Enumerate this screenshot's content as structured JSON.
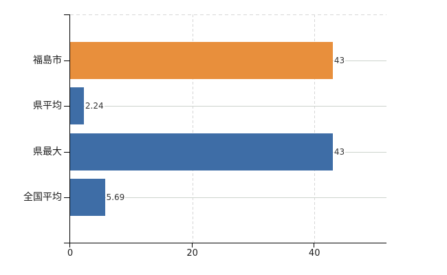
{
  "chart_data": {
    "type": "bar",
    "orientation": "horizontal",
    "title": "",
    "categories": [
      "福島市",
      "県平均",
      "県最大",
      "全国平均"
    ],
    "values": [
      43,
      2.24,
      43,
      5.69
    ],
    "value_labels": [
      "43",
      "2.24",
      "43",
      "5.69"
    ],
    "bar_colors": [
      "#e88f3c",
      "#3e6da6",
      "#3e6da6",
      "#3e6da6"
    ],
    "xlim": [
      0,
      51.8
    ],
    "xticks": [
      0,
      20,
      40
    ],
    "xtick_labels": [
      "0",
      "20",
      "40"
    ],
    "legend": "none",
    "grid": {
      "vertical_gridlines": "dashed at each x tick",
      "horizontal_gridlines": "solid at each category center",
      "plot_top_border": "dashed"
    }
  },
  "colors": {
    "background": "#ffffff",
    "axis": "#000000",
    "h_gridline": "#ccd3cc",
    "v_gridline": "#d6d6d6",
    "top_border": "#d8d8d8",
    "bar_orange": "#e88f3c",
    "bar_blue": "#3e6da6",
    "category_text": "#1a1a1a",
    "value_text": "#333333",
    "tick_text": "#1a1a1a"
  }
}
